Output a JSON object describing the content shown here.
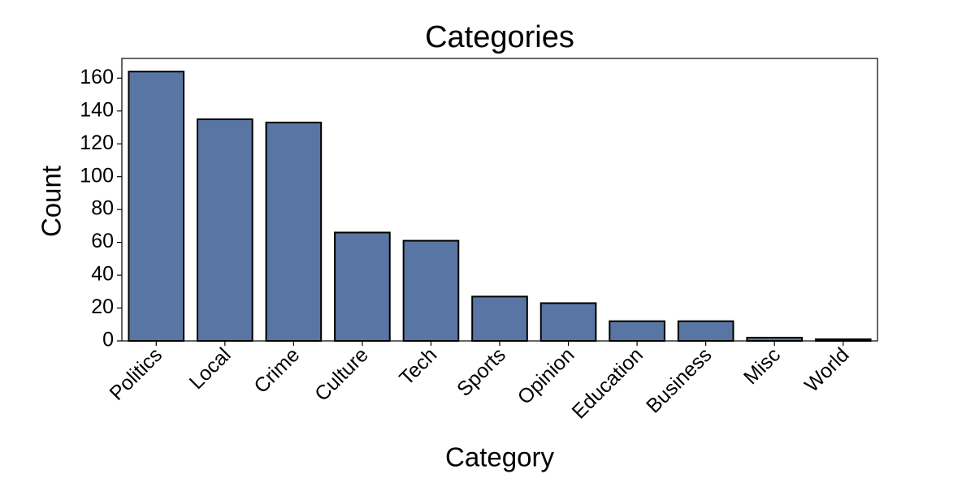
{
  "chart_data": {
    "type": "bar",
    "title": "Categories",
    "x_label": "Category",
    "y_label": "Count",
    "categories": [
      "Politics",
      "Local",
      "Crime",
      "Culture",
      "Tech",
      "Sports",
      "Opinion",
      "Education",
      "Business",
      "Misc",
      "World"
    ],
    "values": [
      164,
      135,
      133,
      66,
      61,
      27,
      23,
      12,
      12,
      2,
      1
    ],
    "color": "#5975a4",
    "ylim": [
      0,
      172
    ],
    "yticks": [
      0,
      20,
      40,
      60,
      80,
      100,
      120,
      140,
      160
    ],
    "grid": false
  }
}
